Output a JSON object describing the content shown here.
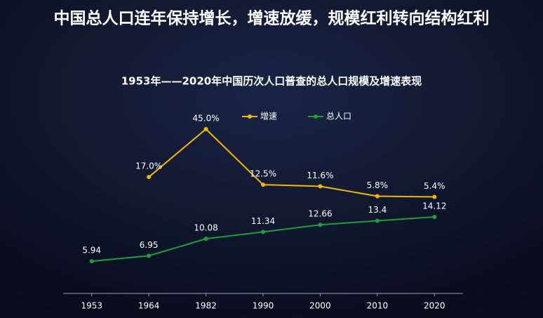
{
  "chart_data": {
    "type": "line",
    "page_title": "中国总人口连年保持增长，增速放缓，规模红利转向结构红利",
    "title": "1953年——2020年中国历次人口普查的总人口规模及增速表现",
    "categories": [
      "1953",
      "1964",
      "1982",
      "1990",
      "2000",
      "2010",
      "2020"
    ],
    "series": [
      {
        "name": "增速",
        "color": "#f2b705",
        "axis": "y2",
        "values": [
          null,
          17.0,
          45.0,
          12.5,
          11.6,
          5.8,
          5.4
        ],
        "value_labels": [
          null,
          "17.0%",
          "45.0%",
          "12.5%",
          "11.6%",
          "5.8%",
          "5.4%"
        ]
      },
      {
        "name": "总人口",
        "color": "#1f9e3c",
        "values": [
          5.94,
          6.95,
          10.08,
          11.34,
          12.66,
          13.4,
          14.12
        ]
      }
    ],
    "ylim": [
      0,
      36
    ],
    "y2lim": [
      -51,
      63
    ]
  }
}
